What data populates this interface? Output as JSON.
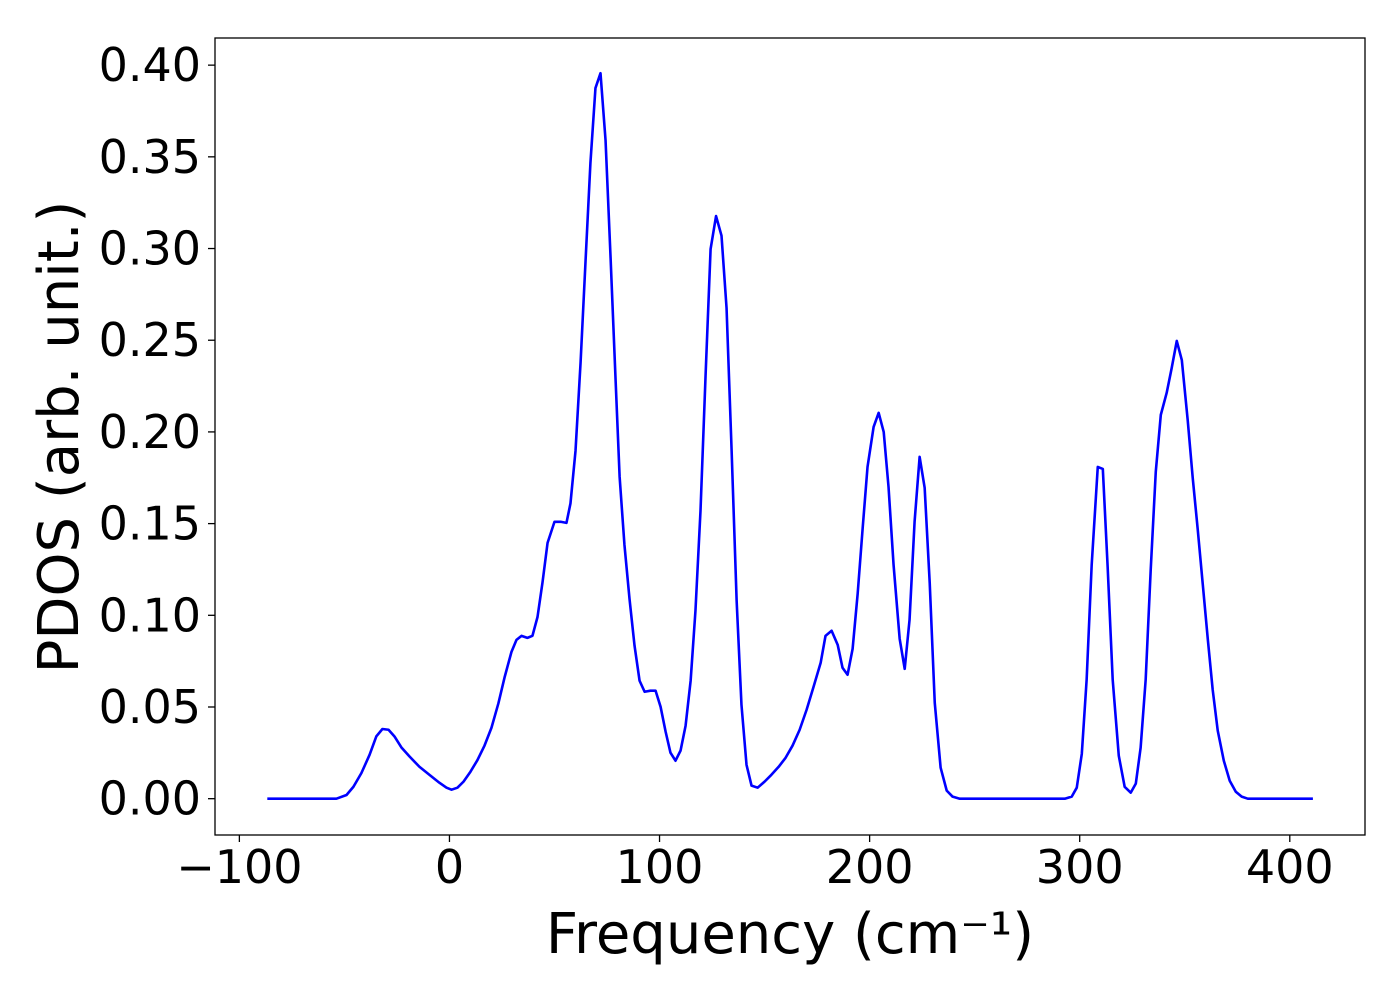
{
  "chart_data": {
    "type": "line",
    "xlabel": "Frequency (cm⁻¹)",
    "ylabel": "PDOS (arb. unit.)",
    "color": "#0000ff",
    "x": [
      -86.7,
      -53.8,
      -49,
      -45.7,
      -41.9,
      -38,
      -34.8,
      -31.9,
      -29,
      -26.2,
      -22.9,
      -19,
      -14.3,
      -9.5,
      -4.8,
      -1.4,
      1,
      3.8,
      6.7,
      10,
      13.3,
      16.7,
      20,
      23.3,
      26.2,
      29.5,
      31.9,
      34.3,
      37.1,
      39.5,
      41.9,
      44.3,
      46.7,
      50,
      52.9,
      55.7,
      57.6,
      60,
      62.4,
      64.8,
      67.1,
      69.5,
      71.9,
      74.3,
      76.7,
      79,
      81,
      83.3,
      85.7,
      88.1,
      90.5,
      92.9,
      95.7,
      98.1,
      100.5,
      102.9,
      105.2,
      107.6,
      110,
      112.4,
      114.8,
      117.1,
      119.5,
      121.9,
      124.3,
      126.9,
      129.5,
      131.9,
      134.3,
      136.7,
      139,
      141.4,
      143.8,
      146.7,
      150,
      153.3,
      156.7,
      160,
      163.3,
      166.7,
      170,
      173.3,
      176.7,
      179,
      181.9,
      184.8,
      187.1,
      189.5,
      191.9,
      194.3,
      196.7,
      199,
      201.9,
      204.3,
      206.7,
      209,
      211.4,
      214.3,
      216.7,
      219,
      221.4,
      223.8,
      226.2,
      228.6,
      231,
      233.8,
      236.7,
      239.5,
      242.9,
      292.9,
      296.2,
      298.6,
      301,
      303.3,
      305.7,
      308.6,
      311,
      313.3,
      315.7,
      318.6,
      321.4,
      324.3,
      326.7,
      329,
      331.4,
      333.8,
      336.2,
      338.6,
      341.4,
      343.8,
      346.2,
      348.6,
      351.4,
      353.8,
      356.2,
      358.6,
      361,
      363.3,
      365.7,
      368.6,
      371.4,
      374.3,
      377.1,
      380,
      411
    ],
    "values": [
      0,
      0,
      0.002,
      0.0065,
      0.014,
      0.024,
      0.034,
      0.038,
      0.0376,
      0.034,
      0.028,
      0.023,
      0.0174,
      0.013,
      0.0087,
      0.006,
      0.0049,
      0.006,
      0.0093,
      0.0147,
      0.021,
      0.029,
      0.0387,
      0.052,
      0.066,
      0.08,
      0.0866,
      0.0888,
      0.0877,
      0.0888,
      0.099,
      0.118,
      0.1395,
      0.151,
      0.151,
      0.1504,
      0.161,
      0.1896,
      0.2376,
      0.2937,
      0.3466,
      0.3875,
      0.3956,
      0.359,
      0.2948,
      0.2305,
      0.1755,
      0.1384,
      0.109,
      0.0834,
      0.0643,
      0.0583,
      0.0589,
      0.0589,
      0.0501,
      0.0365,
      0.0251,
      0.0207,
      0.0262,
      0.0398,
      0.0643,
      0.1025,
      0.157,
      0.2305,
      0.2997,
      0.3177,
      0.307,
      0.2676,
      0.19,
      0.1079,
      0.0512,
      0.0185,
      0.0071,
      0.006,
      0.0093,
      0.0131,
      0.0174,
      0.0223,
      0.0289,
      0.0376,
      0.0485,
      0.061,
      0.0741,
      0.0888,
      0.0916,
      0.0839,
      0.0714,
      0.0676,
      0.0817,
      0.1117,
      0.1477,
      0.1809,
      0.2027,
      0.2104,
      0.2,
      0.17,
      0.1275,
      0.0872,
      0.0708,
      0.0975,
      0.151,
      0.1864,
      0.1695,
      0.1177,
      0.0523,
      0.0169,
      0.0044,
      0.0011,
      0,
      0,
      0.0011,
      0.006,
      0.0245,
      0.0649,
      0.1275,
      0.1809,
      0.1798,
      0.1264,
      0.0649,
      0.0234,
      0.0065,
      0.0033,
      0.0082,
      0.0278,
      0.0649,
      0.1248,
      0.1782,
      0.2093,
      0.2213,
      0.2349,
      0.2496,
      0.2392,
      0.2065,
      0.1749,
      0.1466,
      0.1166,
      0.0866,
      0.0594,
      0.0371,
      0.0207,
      0.0098,
      0.0038,
      0.0011,
      0,
      0
    ],
    "xlim": [
      -111.6,
      435.8
    ],
    "ylim": [
      -0.0198,
      0.4148
    ],
    "xticks": [
      {
        "value": -100,
        "label": "−100"
      },
      0,
      100,
      200,
      300,
      400
    ],
    "yticks": [
      {
        "value": 0,
        "label": "0.00"
      },
      0.05,
      {
        "value": 0.1,
        "label": "0.10"
      },
      0.15,
      {
        "value": 0.2,
        "label": "0.20"
      },
      0.25,
      {
        "value": 0.3,
        "label": "0.30"
      },
      0.35,
      {
        "value": 0.4,
        "label": "0.40"
      }
    ]
  }
}
